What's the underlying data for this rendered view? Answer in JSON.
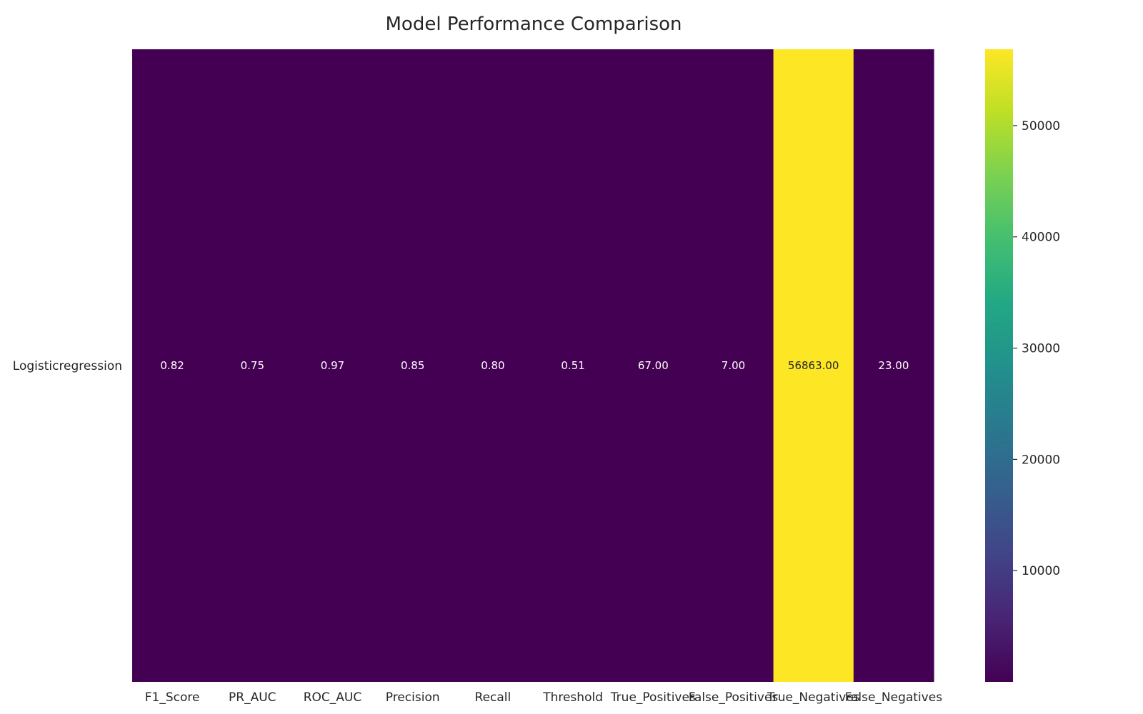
{
  "chart_data": {
    "type": "heatmap",
    "title": "Model Performance Comparison",
    "xlabel": "",
    "ylabel": "",
    "rows": [
      "Logisticregression"
    ],
    "columns": [
      "F1_Score",
      "PR_AUC",
      "ROC_AUC",
      "Precision",
      "Recall",
      "Threshold",
      "True_Positives",
      "False_Positives",
      "True_Negatives",
      "False_Negatives"
    ],
    "values": [
      [
        0.82,
        0.75,
        0.97,
        0.85,
        0.8,
        0.51,
        67.0,
        7.0,
        56863.0,
        23.0
      ]
    ],
    "annotations": [
      [
        "0.82",
        "0.75",
        "0.97",
        "0.85",
        "0.80",
        "0.51",
        "67.00",
        "7.00",
        "56863.00",
        "23.00"
      ]
    ],
    "colormap": "viridis",
    "colorbar": {
      "range": [
        0.51,
        56863.0
      ],
      "ticks": [
        10000,
        20000,
        30000,
        40000,
        50000
      ],
      "tick_labels": [
        "10000",
        "20000",
        "30000",
        "40000",
        "50000"
      ]
    },
    "grid": false,
    "colors": {
      "low": "#440154",
      "high": "#fde725",
      "text_on_dark": "#ffffff",
      "text_on_light": "#262626"
    }
  }
}
